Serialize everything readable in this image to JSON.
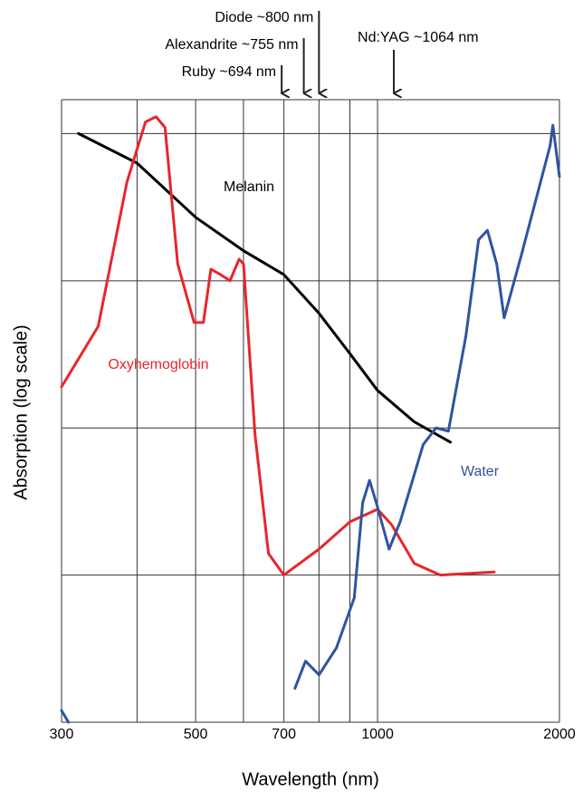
{
  "chart_data": {
    "type": "line",
    "x_label": "Wavelength (nm)",
    "y_label": "Absorption (log scale)",
    "xscale": "log",
    "yscale": "log",
    "xlim": [
      300,
      2000
    ],
    "xticks": [
      300,
      {
        "value": 400,
        "label": null
      },
      500,
      {
        "value": 600,
        "label": null
      },
      700,
      {
        "value": 800,
        "label": null
      },
      {
        "value": 900,
        "label": null
      },
      1000,
      2000
    ],
    "ylim": [
      0.001,
      17
    ],
    "yticks": [
      0.01,
      0.1,
      1,
      10
    ],
    "grid": true,
    "series": [
      {
        "name": "Melanin",
        "color": "#000000",
        "x": [
          320,
          400,
          500,
          600,
          700,
          800,
          900,
          1000,
          1150,
          1320
        ],
        "values": [
          10,
          6.3,
          2.7,
          1.6,
          1.1,
          0.6,
          0.32,
          0.18,
          0.11,
          0.08
        ]
      },
      {
        "name": "Oxyhemoglobin",
        "color": "#e8262a",
        "x": [
          300,
          345,
          385,
          413,
          430,
          445,
          467,
          497,
          515,
          530,
          550,
          570,
          590,
          600,
          627,
          660,
          700,
          800,
          900,
          1000,
          1055,
          1150,
          1270,
          1560
        ],
        "values": [
          0.19,
          0.49,
          4.7,
          12,
          13,
          11,
          1.3,
          0.52,
          0.52,
          1.2,
          1.1,
          1.0,
          1.4,
          1.3,
          0.09,
          0.014,
          0.01,
          0.015,
          0.023,
          0.028,
          0.022,
          0.012,
          0.01,
          0.0105
        ]
      },
      {
        "name": "Water",
        "color": "#2f54a0",
        "x": [
          300,
          308,
          690,
          730,
          760,
          800,
          855,
          915,
          945,
          970,
          1000,
          1045,
          1090,
          1190,
          1250,
          1310,
          1400,
          1470,
          1520,
          1575,
          1620,
          1730,
          1930,
          1950,
          2000
        ],
        "values": [
          0.0012,
          0.001,
          null,
          0.0017,
          0.0026,
          0.0021,
          0.0032,
          0.007,
          0.031,
          0.044,
          0.029,
          0.015,
          0.023,
          0.077,
          0.1,
          0.095,
          0.42,
          1.9,
          2.2,
          1.3,
          0.56,
          1.5,
          8.3,
          11.4,
          5.1
        ]
      }
    ],
    "annotations": [
      {
        "text": "Diode ~800 nm",
        "x": 800
      },
      {
        "text": "Alexandrite ~755 nm",
        "x": 755
      },
      {
        "text": "Ruby ~694 nm",
        "x": 694
      },
      {
        "text": "Nd:YAG ~1064 nm",
        "x": 1064
      }
    ]
  }
}
